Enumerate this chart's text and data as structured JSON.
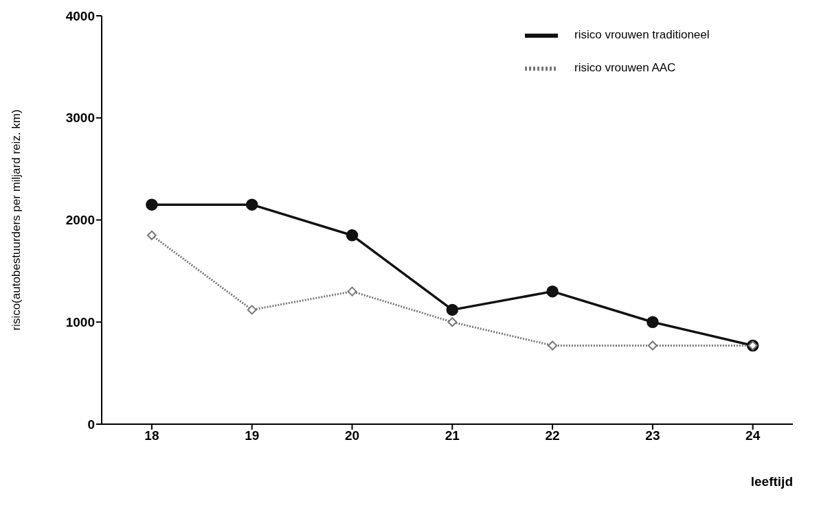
{
  "chart_data": {
    "type": "line",
    "xlabel": "leeftijd",
    "ylabel": "risico(autobestuurders per miljard reiz. km)",
    "x": [
      18,
      19,
      20,
      21,
      22,
      23,
      24
    ],
    "xlim": [
      17.5,
      24.4
    ],
    "xticks": [
      18,
      19,
      20,
      21,
      22,
      23,
      24
    ],
    "ylim": [
      0,
      4000
    ],
    "yticks": [
      0,
      1000,
      2000,
      3000,
      4000
    ],
    "grid": false,
    "legend": "top right",
    "series": [
      {
        "name": "risico vrouwen traditioneel",
        "color": "#111111",
        "marker": "circle",
        "line_style": "solid",
        "values": [
          2150,
          2150,
          1850,
          1120,
          1300,
          1000,
          770
        ]
      },
      {
        "name": "risico vrouwen AAC",
        "color": "#777777",
        "marker": "diamond",
        "line_style": "dotted",
        "values": [
          1850,
          1120,
          1300,
          1000,
          770,
          770,
          770
        ]
      }
    ]
  }
}
